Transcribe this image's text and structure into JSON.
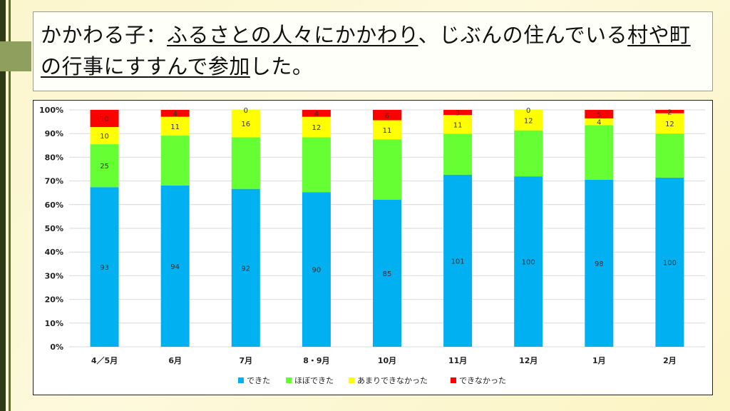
{
  "slide": {
    "title_part1": "かかわる子：",
    "title_part2": "ふるさとの人々にかかわり",
    "title_part3": "、じぶんの住んでいる",
    "title_part4": "村や町の行事にすすんで参加",
    "title_part5": "した。"
  },
  "colors": {
    "dekita": "#00b0f0",
    "hobodekita": "#66ff33",
    "amari": "#ffff00",
    "dekinakatta": "#ff0000"
  },
  "chart_data": {
    "type": "bar",
    "stacked": "percent",
    "categories": [
      "4／5月",
      "6月",
      "7月",
      "8・9月",
      "10月",
      "11月",
      "12月",
      "1月",
      "2月"
    ],
    "series": [
      {
        "name": "できた",
        "values": [
          93,
          94,
          92,
          90,
          85,
          101,
          100,
          98,
          100
        ]
      },
      {
        "name": "ほぼできた",
        "values": [
          25,
          29,
          30,
          32,
          35,
          24,
          27,
          32,
          26
        ]
      },
      {
        "name": "あまりできなかった",
        "values": [
          10,
          11,
          16,
          12,
          11,
          11,
          12,
          4,
          12
        ]
      },
      {
        "name": "できなかった",
        "values": [
          10,
          4,
          0,
          4,
          6,
          3,
          0,
          5,
          2
        ]
      }
    ],
    "visible_labels": [
      [
        "93",
        "94",
        "92",
        "90",
        "85",
        "101",
        "100",
        "98",
        "100"
      ],
      [
        "25",
        "",
        "",
        "",
        "",
        "",
        "",
        "",
        ""
      ],
      [
        "10",
        "11",
        "16",
        "12",
        "11",
        "11",
        "12",
        "4",
        "12"
      ],
      [
        "10",
        "4",
        "0",
        "4",
        "6",
        "3",
        "0",
        "5",
        "2"
      ]
    ],
    "yticks": [
      "0%",
      "10%",
      "20%",
      "30%",
      "40%",
      "50%",
      "60%",
      "70%",
      "80%",
      "90%",
      "100%"
    ],
    "ylim": [
      0,
      100
    ],
    "grid": true,
    "legend_position": "bottom"
  }
}
